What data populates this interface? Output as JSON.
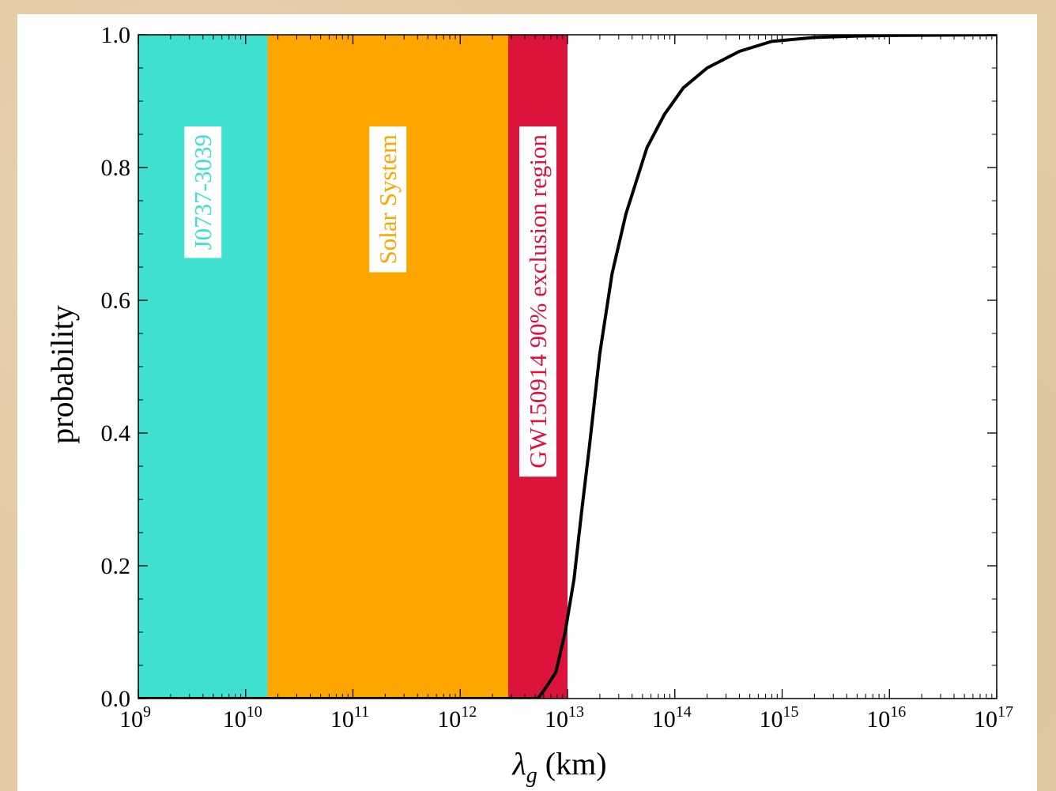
{
  "chart_data": {
    "type": "line",
    "x_scale": "log",
    "xlim": [
      1000000000.0,
      1e+17
    ],
    "ylim": [
      0.0,
      1.0
    ],
    "xlabel": "λ",
    "xlabel_subscript": "g",
    "xlabel_unit": "(km)",
    "ylabel": "probability",
    "x_ticks": [
      {
        "value": 1000000000.0,
        "base": "10",
        "exp": "9"
      },
      {
        "value": 10000000000.0,
        "base": "10",
        "exp": "10"
      },
      {
        "value": 100000000000.0,
        "base": "10",
        "exp": "11"
      },
      {
        "value": 1000000000000.0,
        "base": "10",
        "exp": "12"
      },
      {
        "value": 10000000000000.0,
        "base": "10",
        "exp": "13"
      },
      {
        "value": 100000000000000.0,
        "base": "10",
        "exp": "14"
      },
      {
        "value": 1000000000000000.0,
        "base": "10",
        "exp": "15"
      },
      {
        "value": 1e+16,
        "base": "10",
        "exp": "16"
      },
      {
        "value": 1e+17,
        "base": "10",
        "exp": "17"
      }
    ],
    "y_ticks": [
      {
        "value": 0.0,
        "label": "0.0"
      },
      {
        "value": 0.2,
        "label": "0.2"
      },
      {
        "value": 0.4,
        "label": "0.4"
      },
      {
        "value": 0.6,
        "label": "0.6"
      },
      {
        "value": 0.8,
        "label": "0.8"
      },
      {
        "value": 1.0,
        "label": "1.0"
      }
    ],
    "regions": [
      {
        "label": "J0737-3039",
        "x_start": 1000000000.0,
        "x_end": 16000000000.0,
        "color": "#40e0d0"
      },
      {
        "label": "Solar System",
        "x_start": 16000000000.0,
        "x_end": 2800000000000.0,
        "color": "#ffa500"
      },
      {
        "label": "GW150914 90% exclusion region",
        "x_start": 2800000000000.0,
        "x_end": 10000000000000.0,
        "color": "#dc143c"
      }
    ],
    "series": [
      {
        "color": "#000000",
        "points": [
          [
            1000000000.0,
            0.0
          ],
          [
            5300000000000.0,
            0.0
          ],
          [
            6500000000000.0,
            0.02
          ],
          [
            7800000000000.0,
            0.04
          ],
          [
            9500000000000.0,
            0.1
          ],
          [
            11500000000000.0,
            0.18
          ],
          [
            13500000000000.0,
            0.28
          ],
          [
            16000000000000.0,
            0.38
          ],
          [
            20000000000000.0,
            0.52
          ],
          [
            26000000000000.0,
            0.64
          ],
          [
            35000000000000.0,
            0.73
          ],
          [
            55000000000000.0,
            0.83
          ],
          [
            80000000000000.0,
            0.88
          ],
          [
            120000000000000.0,
            0.92
          ],
          [
            200000000000000.0,
            0.95
          ],
          [
            400000000000000.0,
            0.975
          ],
          [
            800000000000000.0,
            0.99
          ],
          [
            2000000000000000.0,
            0.996
          ],
          [
            5000000000000000.0,
            0.998
          ],
          [
            1e+16,
            0.999
          ],
          [
            1e+17,
            1.0
          ]
        ]
      }
    ]
  }
}
